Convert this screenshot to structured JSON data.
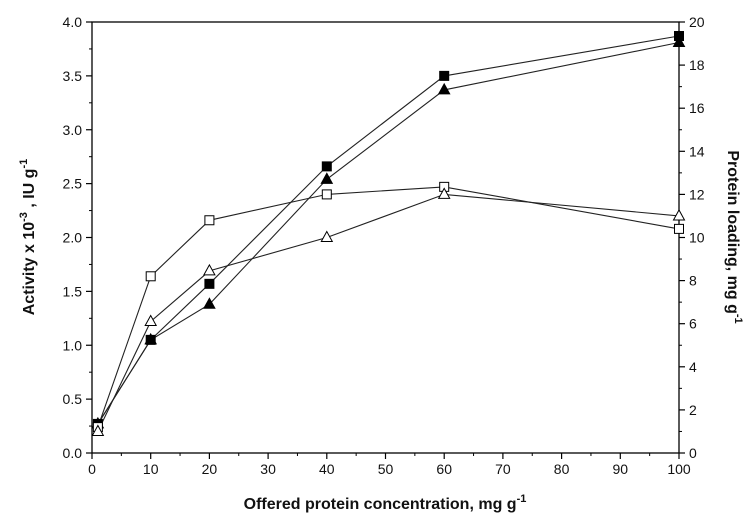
{
  "chart_data": {
    "type": "line",
    "title": "",
    "xlabel": {
      "text": "Offered protein concentration, mg g",
      "sup": "-1"
    },
    "ylabel_left": {
      "prefix": "Activity x 10",
      "sup1": "-3",
      "middle": " , IU g",
      "sup2": "-1"
    },
    "ylabel_right": {
      "text": "Protein loading, mg g",
      "sup": "-1"
    },
    "xlim": [
      0,
      100
    ],
    "ylim_left": [
      0,
      4.0
    ],
    "ylim_right": [
      0,
      20
    ],
    "x_ticks": [
      "0",
      "10",
      "20",
      "30",
      "40",
      "50",
      "60",
      "70",
      "80",
      "90",
      "100"
    ],
    "y_left_ticks": [
      "0.0",
      "0.5",
      "1.0",
      "1.5",
      "2.0",
      "2.5",
      "3.0",
      "3.5",
      "4.0"
    ],
    "y_right_ticks": [
      "0",
      "2",
      "4",
      "6",
      "8",
      "10",
      "12",
      "14",
      "16",
      "18",
      "20"
    ],
    "grid": false,
    "series": [
      {
        "marker": "filled-square",
        "axis": "left",
        "x": [
          1,
          10,
          20,
          40,
          60,
          100
        ],
        "y": [
          0.27,
          1.05,
          1.57,
          2.66,
          3.5,
          3.87
        ]
      },
      {
        "marker": "filled-triangle",
        "axis": "left",
        "x": [
          1,
          10,
          20,
          40,
          60,
          100
        ],
        "y": [
          0.27,
          1.05,
          1.38,
          2.54,
          3.37,
          3.81
        ]
      },
      {
        "marker": "open-square",
        "axis": "right",
        "x": [
          1,
          10,
          20,
          40,
          60,
          100
        ],
        "y": [
          1.2,
          8.2,
          10.8,
          12.0,
          12.35,
          10.4
        ]
      },
      {
        "marker": "open-triangle",
        "axis": "right",
        "x": [
          1,
          10,
          20,
          40,
          60,
          100
        ],
        "y": [
          1.0,
          6.1,
          8.45,
          10.0,
          12.0,
          11.0
        ]
      }
    ]
  }
}
